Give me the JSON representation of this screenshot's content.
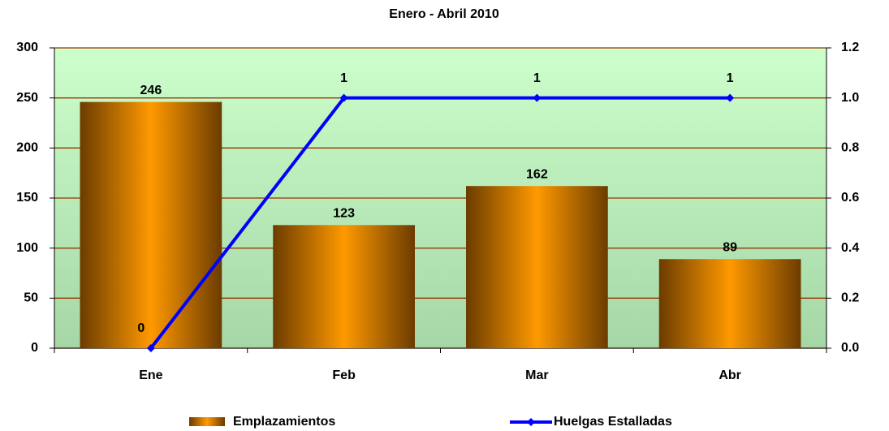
{
  "chart_data": {
    "type": "bar",
    "title": "Enero - Abril 2010",
    "categories": [
      "Ene",
      "Feb",
      "Mar",
      "Abr"
    ],
    "series": [
      {
        "name": "Emplazamientos",
        "type": "bar",
        "color": "#ff9900",
        "values": [
          246,
          123,
          162,
          89
        ]
      },
      {
        "name": "Huelgas Estalladas",
        "type": "line",
        "axis": "y2",
        "color": "#0000ff",
        "values": [
          0,
          1,
          1,
          1
        ]
      }
    ],
    "ylim": [
      0,
      300
    ],
    "yticks": [
      0,
      50,
      100,
      150,
      200,
      250,
      300
    ],
    "y2lim": [
      0,
      1.2
    ],
    "y2ticks": [
      {
        "value": 0,
        "label": "0.0"
      },
      0.2,
      0.4,
      0.6,
      0.8,
      {
        "value": 1,
        "label": "1.0"
      },
      1.2
    ],
    "grid": true,
    "grid_color": "#993300",
    "legend": "bottom"
  }
}
